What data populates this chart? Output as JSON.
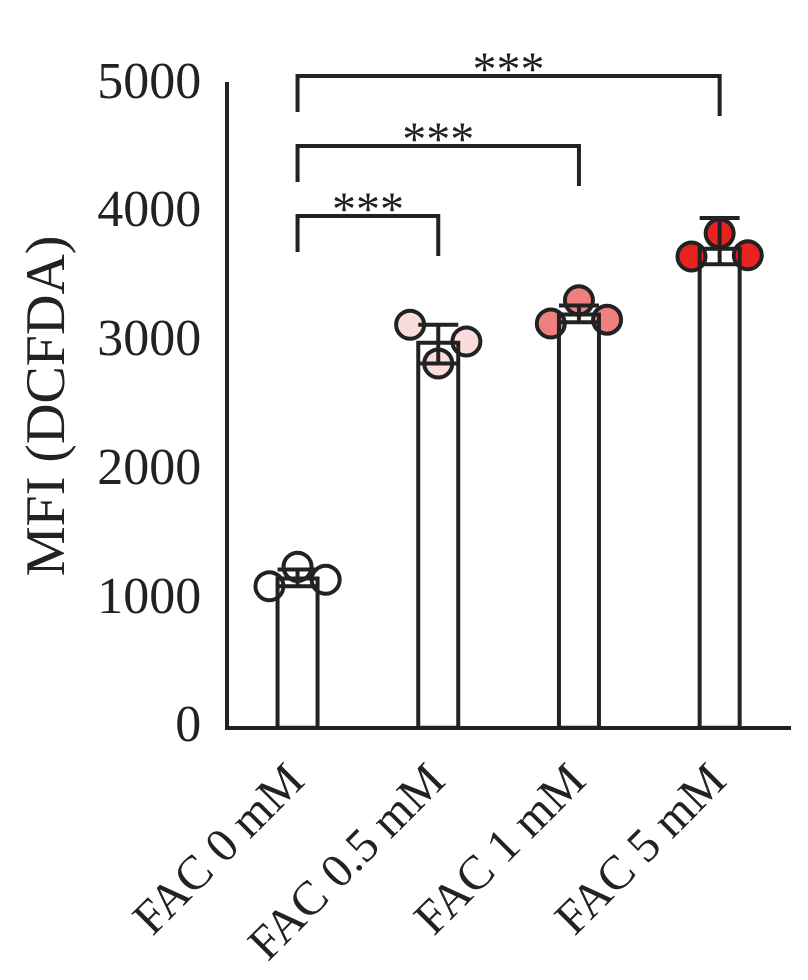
{
  "chart_data": {
    "type": "bar",
    "ylabel": "MFI (DCFDA)",
    "categories": [
      "FAC 0 mM",
      "FAC 0.5 mM",
      "FAC 1 mM",
      "FAC 5 mM"
    ],
    "series": [
      {
        "color": "#ffffff",
        "values": [
          1160,
          2990,
          3210,
          3720
        ],
        "errors": [
          [
            1100,
            1230
          ],
          [
            2830,
            3130
          ],
          [
            3150,
            3280
          ],
          [
            3600,
            3960
          ]
        ]
      },
      {
        "type": "scatter",
        "x": [
          "FAC 0 mM",
          "FAC 0 mM",
          "FAC 0 mM",
          "FAC 0.5 mM",
          "FAC 0.5 mM",
          "FAC 0.5 mM",
          "FAC 1 mM",
          "FAC 1 mM",
          "FAC 1 mM",
          "FAC 5 mM",
          "FAC 5 mM",
          "FAC 5 mM"
        ],
        "values": [
          1100,
          1250,
          1150,
          3130,
          2830,
          3000,
          3140,
          3320,
          3170,
          3660,
          3840,
          3670
        ],
        "colors": [
          "#ffffff",
          "#ffffff",
          "#ffffff",
          "#fadcdc",
          "#fadcdc",
          "#fadcdc",
          "#f08080",
          "#f08080",
          "#f08080",
          "#e8231f",
          "#e8231f",
          "#e8231f"
        ]
      }
    ],
    "ylim": [
      0,
      5000
    ],
    "yticks": [
      0,
      1000,
      2000,
      3000,
      4000,
      5000
    ],
    "annotations": [
      "***",
      "***",
      "***"
    ],
    "grid": false,
    "legend": false,
    "marker": "circle"
  }
}
